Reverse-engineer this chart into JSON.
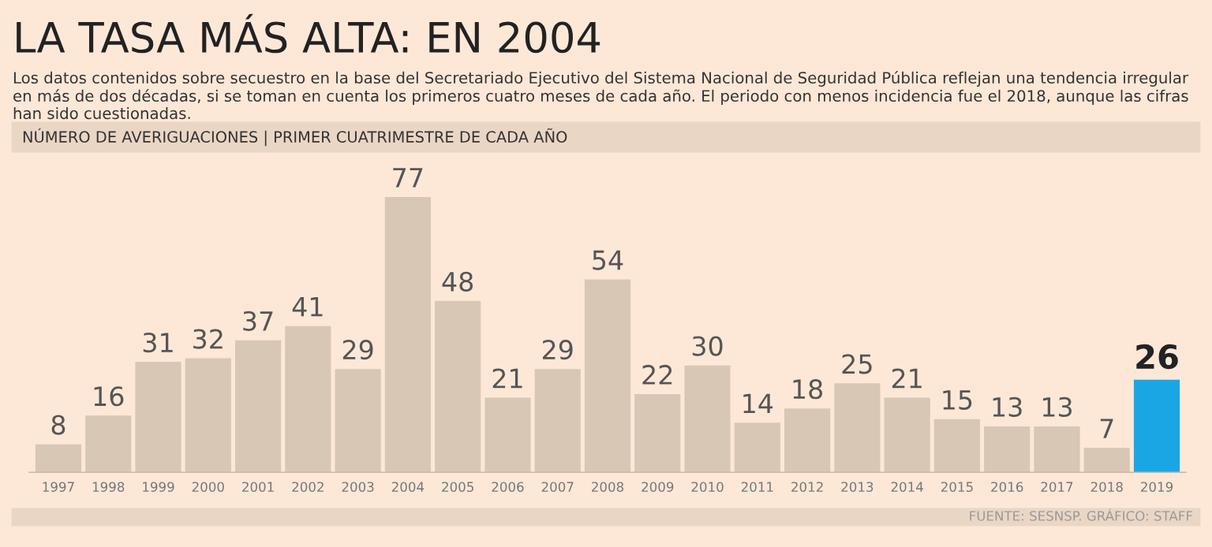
{
  "chart_data": {
    "type": "bar",
    "title": "LA TASA MÁS ALTA: EN 2004",
    "subtitle": "Los datos contenidos sobre secuestro en la base del Secretariado Ejecutivo del Sistema Nacional de Seguridad Pública reflejan una tendencia irregular en más de dos décadas, si se toman en cuenta los primeros cuatro meses de cada año. El periodo con menos incidencia fue el 2018, aunque las cifras han sido cuestionadas.",
    "annotations": [
      "NÚMERO DE AVERIGUACIONES | PRIMER CUATRIMESTRE DE CADA AÑO",
      "FUENTE: SESNSP. GRÁFICO: STAFF"
    ],
    "categories": [
      "1997",
      "1998",
      "1999",
      "2000",
      "2001",
      "2002",
      "2003",
      "2004",
      "2005",
      "2006",
      "2007",
      "2008",
      "2009",
      "2010",
      "2011",
      "2012",
      "2013",
      "2014",
      "2015",
      "2016",
      "2017",
      "2018",
      "2019"
    ],
    "values": [
      8,
      16,
      31,
      32,
      37,
      41,
      29,
      77,
      48,
      21,
      29,
      54,
      22,
      30,
      14,
      18,
      25,
      21,
      15,
      13,
      13,
      7,
      26
    ],
    "colors": [
      "#d9c7b5",
      "#d9c7b5",
      "#d9c7b5",
      "#d9c7b5",
      "#d9c7b5",
      "#d9c7b5",
      "#d9c7b5",
      "#d9c7b5",
      "#d9c7b5",
      "#d9c7b5",
      "#d9c7b5",
      "#d9c7b5",
      "#d9c7b5",
      "#d9c7b5",
      "#d9c7b5",
      "#d9c7b5",
      "#d9c7b5",
      "#d9c7b5",
      "#d9c7b5",
      "#d9c7b5",
      "#d9c7b5",
      "#d9c7b5",
      "#1aa6e4"
    ],
    "data_labels": true,
    "grid": false,
    "legend": false
  }
}
